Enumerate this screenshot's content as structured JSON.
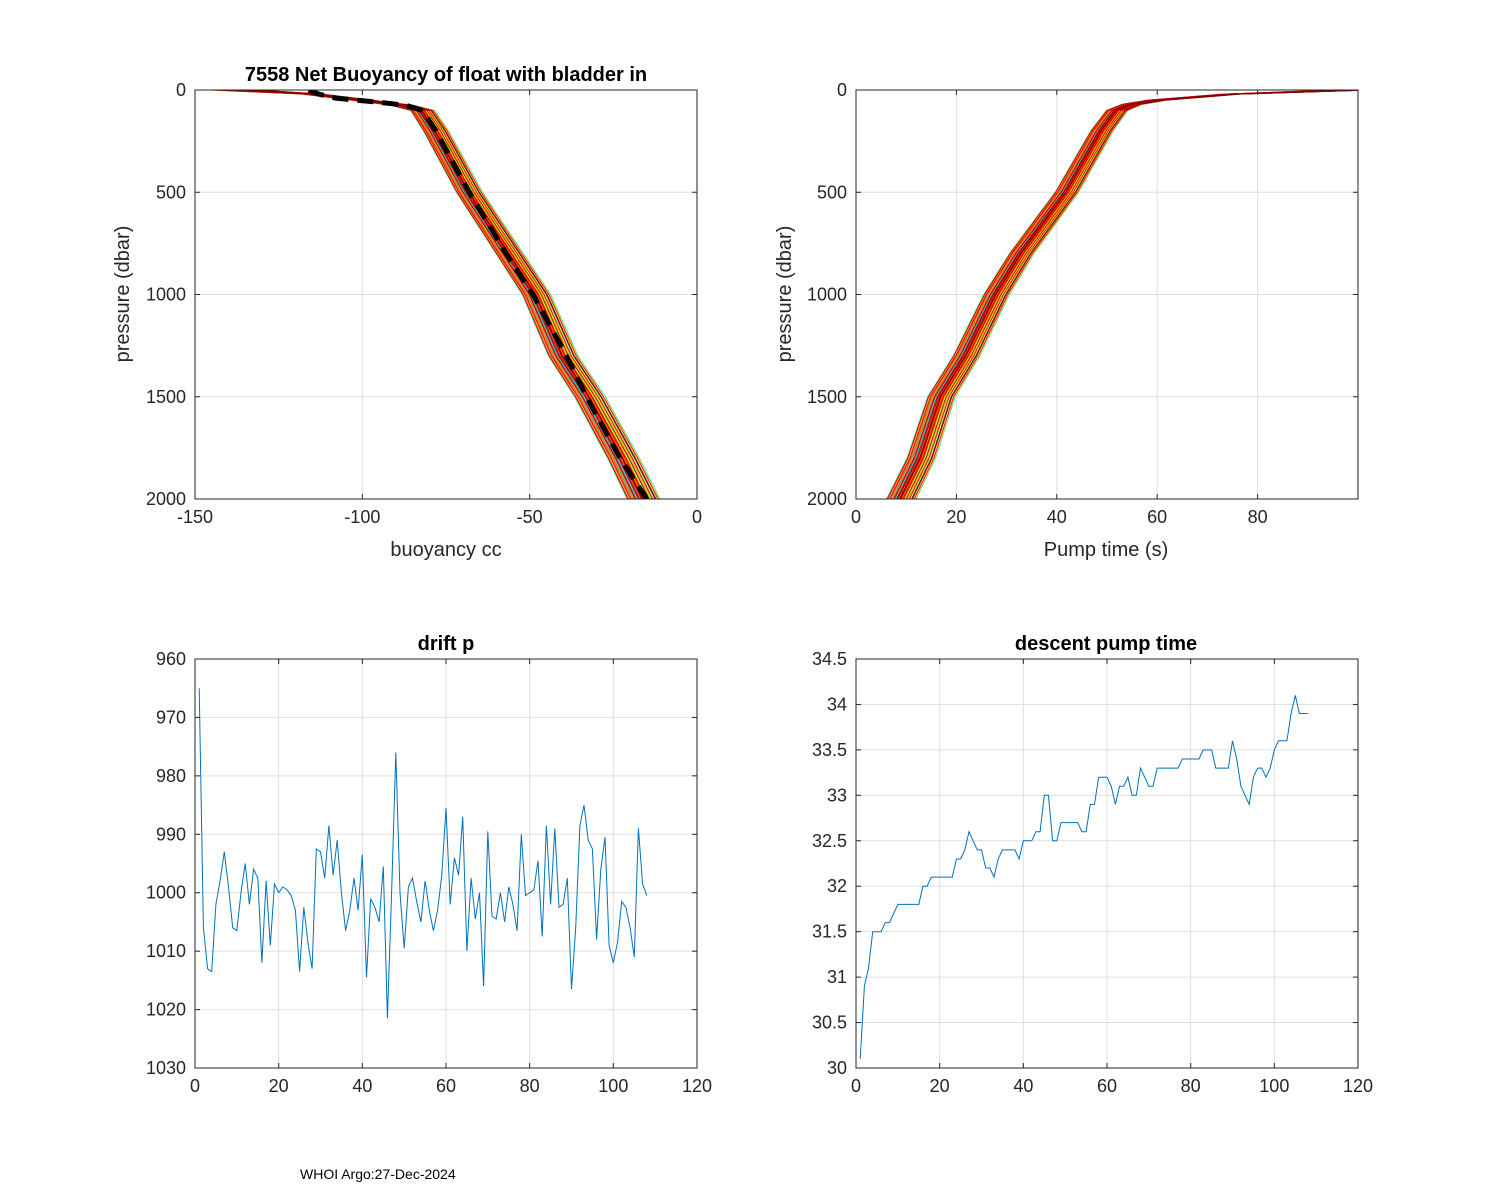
{
  "footer_text": "WHOI Argo:27-Dec-2024",
  "chart_data": [
    {
      "id": "buoyancy",
      "type": "line",
      "title": "7558 Net Buoyancy of float with bladder in",
      "xlabel": "buoyancy cc",
      "ylabel": "pressure (dbar)",
      "xlim": [
        -150,
        0
      ],
      "ylim": [
        0,
        2000
      ],
      "y_reversed": true,
      "grid": true,
      "xticks": [
        -150,
        -100,
        -50,
        0
      ],
      "xtick_labels": [
        "-150",
        "-100",
        "-50",
        "0"
      ],
      "yticks": [
        0,
        500,
        1000,
        1500,
        2000
      ],
      "ytick_labels": [
        "0",
        "500",
        "1000",
        "1500",
        "2000"
      ],
      "ensemble": {
        "count": 107,
        "colormap": "jet",
        "base_pressure": [
          0,
          20,
          50,
          75,
          100,
          200,
          500,
          800,
          1000,
          1300,
          1500,
          1800,
          2000
        ],
        "base_value": [
          -138,
          -115,
          -100,
          -88,
          -82,
          -78,
          -68,
          -56,
          -48,
          -40,
          -32,
          -22,
          -16
        ],
        "spread": 5
      },
      "mean_curve": {
        "name": "mean",
        "color": "#000000",
        "style": "dashed",
        "pressure": [
          0,
          20,
          40,
          60,
          75,
          100,
          200,
          500,
          800,
          1000,
          1300,
          1500,
          1800,
          2000
        ],
        "value": [
          -116,
          -113,
          -108,
          -95,
          -87,
          -82,
          -78,
          -68,
          -57,
          -49,
          -39,
          -33,
          -23,
          -15
        ]
      }
    },
    {
      "id": "pump",
      "type": "line",
      "title": "",
      "xlabel": "Pump time (s)",
      "ylabel": "pressure (dbar)",
      "xlim": [
        0,
        100
      ],
      "ylim": [
        0,
        2000
      ],
      "y_reversed": true,
      "grid": true,
      "xticks": [
        0,
        20,
        40,
        60,
        80
      ],
      "xtick_labels": [
        "0",
        "20",
        "40",
        "60",
        "80"
      ],
      "yticks": [
        0,
        500,
        1000,
        1500,
        2000
      ],
      "ytick_labels": [
        "0",
        "500",
        "1000",
        "1500",
        "2000"
      ],
      "ensemble": {
        "count": 107,
        "colormap": "jet",
        "base_pressure": [
          0,
          20,
          50,
          70,
          100,
          200,
          500,
          800,
          1000,
          1300,
          1500,
          1800,
          2000
        ],
        "base_value": [
          99,
          75,
          60,
          55,
          52,
          49,
          42,
          33,
          28,
          22,
          17,
          13,
          9
        ],
        "spread": 3
      }
    },
    {
      "id": "drift",
      "type": "line",
      "title": "drift p",
      "xlabel": "",
      "ylabel": "",
      "xlim": [
        0,
        120
      ],
      "ylim": [
        960,
        1030
      ],
      "y_reversed": true,
      "grid": true,
      "xticks": [
        0,
        20,
        40,
        60,
        80,
        100,
        120
      ],
      "xtick_labels": [
        "0",
        "20",
        "40",
        "60",
        "80",
        "100",
        "120"
      ],
      "yticks": [
        960,
        970,
        980,
        990,
        1000,
        1010,
        1020,
        1030
      ],
      "ytick_labels": [
        "960",
        "970",
        "980",
        "990",
        "1000",
        "1010",
        "1020",
        "1030"
      ],
      "series": [
        {
          "name": "drift p",
          "color": "#0072bd",
          "x_start": 1,
          "values": [
            965,
            1006,
            1013,
            1013.5,
            1002,
            998,
            993,
            999,
            1006,
            1006.5,
            1000,
            995,
            1002,
            996,
            997.5,
            1012,
            998,
            1009,
            998.5,
            1000,
            999,
            999.5,
            1000.5,
            1003,
            1013.5,
            1002.5,
            1008.5,
            1013,
            992.5,
            993,
            997.5,
            988.5,
            997,
            991,
            1000,
            1006.5,
            1003,
            997.5,
            1003,
            993.5,
            1014.5,
            1001,
            1002.5,
            1005,
            995.5,
            1021.5,
            1000,
            976,
            1000,
            1009.5,
            999,
            997.5,
            1001.5,
            1005,
            998,
            1003,
            1006.5,
            1003,
            997,
            985.5,
            1002,
            994,
            997,
            987,
            1010,
            997.5,
            1004.5,
            1000,
            1016,
            989.5,
            1004,
            1004.5,
            1000,
            1005,
            999,
            1002,
            1006.5,
            990,
            1000.5,
            1000,
            999.5,
            994.5,
            1007.5,
            988.5,
            1002,
            989,
            1002.5,
            1002,
            997.5,
            1016.5,
            1006,
            988.5,
            985,
            991,
            992.5,
            1008,
            996,
            990.5,
            1009,
            1012,
            1008.5,
            1001.5,
            1002.5,
            1006,
            1011,
            989,
            998.5,
            1000.5
          ]
        }
      ]
    },
    {
      "id": "descent",
      "type": "line",
      "title": "descent pump time",
      "xlabel": "",
      "ylabel": "",
      "xlim": [
        0,
        120
      ],
      "ylim": [
        30,
        34.5
      ],
      "y_reversed": false,
      "grid": true,
      "xticks": [
        0,
        20,
        40,
        60,
        80,
        100,
        120
      ],
      "xtick_labels": [
        "0",
        "20",
        "40",
        "60",
        "80",
        "100",
        "120"
      ],
      "yticks": [
        30,
        30.5,
        31,
        31.5,
        32,
        32.5,
        33,
        33.5,
        34,
        34.5
      ],
      "ytick_labels": [
        "30",
        "30.5",
        "31",
        "31.5",
        "32",
        "32.5",
        "33",
        "33.5",
        "34",
        "34.5"
      ],
      "series": [
        {
          "name": "descent pump time",
          "color": "#0072bd",
          "x_start": 1,
          "values": [
            30.1,
            30.9,
            31.1,
            31.5,
            31.5,
            31.5,
            31.6,
            31.6,
            31.7,
            31.8,
            31.8,
            31.8,
            31.8,
            31.8,
            31.8,
            32.0,
            32.0,
            32.1,
            32.1,
            32.1,
            32.1,
            32.1,
            32.1,
            32.3,
            32.3,
            32.4,
            32.6,
            32.5,
            32.4,
            32.4,
            32.2,
            32.2,
            32.1,
            32.3,
            32.4,
            32.4,
            32.4,
            32.4,
            32.3,
            32.5,
            32.5,
            32.5,
            32.6,
            32.6,
            33.0,
            33.0,
            32.5,
            32.5,
            32.7,
            32.7,
            32.7,
            32.7,
            32.7,
            32.6,
            32.6,
            32.9,
            32.9,
            33.2,
            33.2,
            33.2,
            33.1,
            32.9,
            33.1,
            33.1,
            33.2,
            33.0,
            33.0,
            33.3,
            33.2,
            33.1,
            33.1,
            33.3,
            33.3,
            33.3,
            33.3,
            33.3,
            33.3,
            33.4,
            33.4,
            33.4,
            33.4,
            33.4,
            33.5,
            33.5,
            33.5,
            33.3,
            33.3,
            33.3,
            33.3,
            33.6,
            33.4,
            33.1,
            33.0,
            32.9,
            33.2,
            33.3,
            33.3,
            33.2,
            33.3,
            33.5,
            33.6,
            33.6,
            33.6,
            33.9,
            34.1,
            33.9,
            33.9,
            33.9
          ]
        }
      ]
    }
  ]
}
